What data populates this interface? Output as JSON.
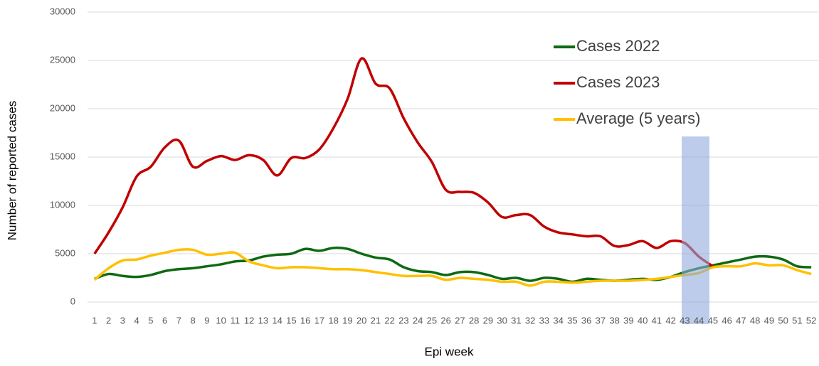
{
  "chart_data": {
    "type": "line",
    "x_label": "Epi week",
    "y_label": "Number of reported cases",
    "categories": [
      "1",
      "2",
      "3",
      "4",
      "5",
      "6",
      "7",
      "8",
      "9",
      "10",
      "11",
      "12",
      "13",
      "14",
      "15",
      "16",
      "17",
      "18",
      "19",
      "20",
      "21",
      "22",
      "23",
      "24",
      "25",
      "26",
      "27",
      "28",
      "29",
      "30",
      "31",
      "32",
      "33",
      "34",
      "35",
      "36",
      "37",
      "38",
      "39",
      "40",
      "41",
      "42",
      "43",
      "44",
      "45",
      "46",
      "47",
      "48",
      "49",
      "50",
      "51",
      "52"
    ],
    "series": [
      {
        "name": "Cases 2022",
        "color": "#0e6a12",
        "values": [
          2400,
          2900,
          2700,
          2600,
          2800,
          3200,
          3400,
          3500,
          3700,
          3900,
          4200,
          4300,
          4700,
          4900,
          5000,
          5500,
          5300,
          5600,
          5500,
          5000,
          4600,
          4400,
          3600,
          3200,
          3100,
          2800,
          3100,
          3100,
          2800,
          2400,
          2500,
          2200,
          2500,
          2400,
          2100,
          2400,
          2300,
          2200,
          2300,
          2400,
          2300,
          2600,
          3100,
          3500,
          3800,
          4100,
          4400,
          4700,
          4700,
          4400,
          3700,
          3600
        ]
      },
      {
        "name": "Cases 2023",
        "color": "#c00000",
        "values": [
          5000,
          7200,
          9800,
          13000,
          14000,
          16000,
          16700,
          14000,
          14600,
          15100,
          14700,
          15200,
          14700,
          13100,
          14900,
          14900,
          15800,
          18000,
          21000,
          25200,
          22600,
          22100,
          19000,
          16500,
          14500,
          11600,
          11400,
          11300,
          10300,
          8800,
          9000,
          9000,
          7800,
          7200,
          7000,
          6800,
          6800,
          5800,
          5900,
          6300,
          5600,
          6300,
          6100,
          4700,
          3700,
          null,
          null,
          null,
          null,
          null,
          null,
          null
        ]
      },
      {
        "name": "Average (5 years)",
        "color": "#ffc000",
        "values": [
          2300,
          3500,
          4300,
          4400,
          4800,
          5100,
          5400,
          5400,
          4900,
          5000,
          5100,
          4200,
          3800,
          3500,
          3600,
          3600,
          3500,
          3400,
          3400,
          3300,
          3100,
          2900,
          2700,
          2700,
          2700,
          2300,
          2500,
          2400,
          2300,
          2100,
          2100,
          1700,
          2100,
          2100,
          2000,
          2100,
          2200,
          2200,
          2200,
          2300,
          2400,
          2600,
          2800,
          3000,
          3600,
          3700,
          3700,
          4000,
          3800,
          3800,
          3300,
          2900
        ]
      }
    ],
    "ylim": [
      0,
      30000
    ],
    "yticks": [
      0,
      5000,
      10000,
      15000,
      20000,
      25000,
      30000
    ],
    "grid": true,
    "legend": "upper right"
  }
}
